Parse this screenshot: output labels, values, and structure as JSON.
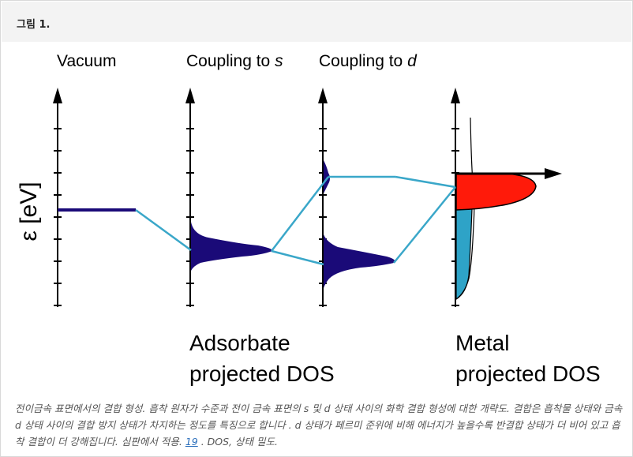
{
  "header": {
    "title": "그림 1."
  },
  "diagram": {
    "col_vacuum": "Vacuum",
    "col_s_prefix": "Coupling to ",
    "col_s_var": "s",
    "col_d_prefix": "Coupling to ",
    "col_d_var": "d",
    "y_axis_symbol": "ε",
    "y_axis_unit": "[eV]",
    "adsorbate_line1": "Adsorbate",
    "adsorbate_line2": "projected DOS",
    "metal_line1": "Metal",
    "metal_line2": "projected DOS",
    "colors": {
      "level": "#1a0a78",
      "connector": "#3aa7c9",
      "occupied_metal": "#2ea3c7",
      "fermi_band": "#ff1a0a"
    }
  },
  "caption": {
    "text": "전이금속 표면에서의 결합 형성. 흡착 원자가 수준과 전이 금속 표면의 s 및 d 상태 사이의 화학 결합 형성에 대한 개략도. 결합은 흡착물 상태와 금속 d 상태 사이의 결합 방지 상태가 차지하는 정도를 특징으로 합니다 . d 상태가 페르미 준위에 비해 에너지가 높을수록 반결합 상태가 더 비어 있고 흡착 결합이 더 강해집니다. 심판에서 적용.",
    "ref": "19",
    "tail": ". DOS, 상태 밀도."
  }
}
